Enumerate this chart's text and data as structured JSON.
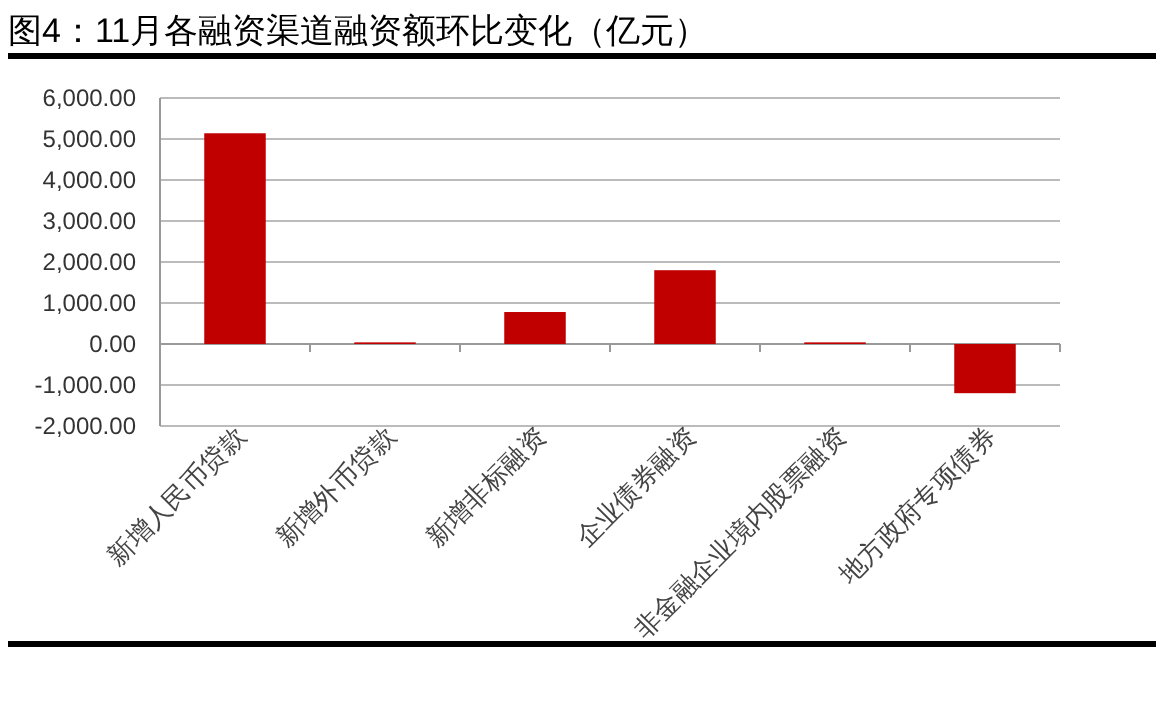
{
  "chart_data": {
    "type": "bar",
    "title": "图4：11月各融资渠道融资额环比变化（亿元）",
    "categories": [
      "新增人民币贷款",
      "新增外币贷款",
      "新增非标融资",
      "企业债券融资",
      "非金融企业境内股票融资",
      "地方政府专项债券"
    ],
    "values": [
      5140,
      40,
      780,
      1800,
      40,
      -1200
    ],
    "color": "#c00000",
    "ylim": [
      -2000,
      6000
    ],
    "yticks": [
      {
        "value": -2000,
        "label": "-2,000.00"
      },
      {
        "value": -1000,
        "label": "-1,000.00"
      },
      {
        "value": 0,
        "label": "0.00"
      },
      {
        "value": 1000,
        "label": "1,000.00"
      },
      {
        "value": 2000,
        "label": "2,000.00"
      },
      {
        "value": 3000,
        "label": "3,000.00"
      },
      {
        "value": 4000,
        "label": "4,000.00"
      },
      {
        "value": 5000,
        "label": "5,000.00"
      },
      {
        "value": 6000,
        "label": "6,000.00"
      }
    ],
    "grid": "y"
  }
}
